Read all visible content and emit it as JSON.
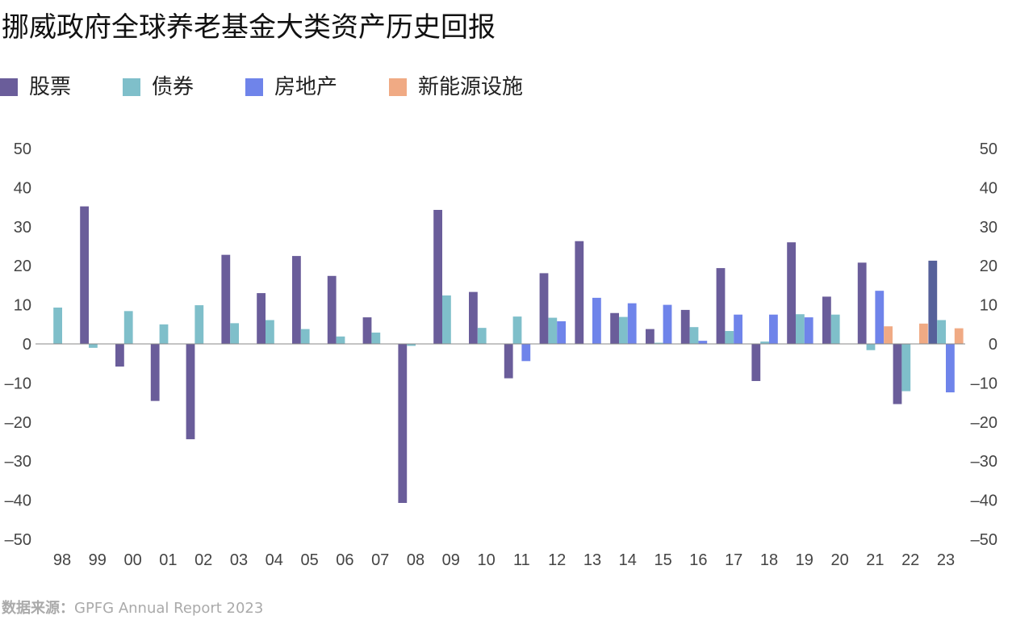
{
  "title": "挪威政府全球养老基金大类资产历史回报",
  "source": {
    "label": "数据来源：",
    "text": "GPFG Annual Report 2023"
  },
  "chart_data": {
    "type": "bar",
    "title": "挪威政府全球养老基金大类资产历史回报",
    "xlabel": "",
    "ylabel": "",
    "ylim": [
      -50,
      50
    ],
    "yticks": [
      50,
      40,
      30,
      20,
      10,
      0,
      -10,
      -20,
      -30,
      -40,
      -50
    ],
    "ytick_labels": [
      "50",
      "40",
      "30",
      "20",
      "10",
      "0",
      "–10",
      "–20",
      "–30",
      "–40",
      "–50"
    ],
    "grid": false,
    "dual_y_axis": true,
    "legend_position": "top-left",
    "categories": [
      "98",
      "99",
      "00",
      "01",
      "02",
      "03",
      "04",
      "05",
      "06",
      "07",
      "08",
      "09",
      "10",
      "11",
      "12",
      "13",
      "14",
      "15",
      "16",
      "17",
      "18",
      "19",
      "20",
      "21",
      "22",
      "23"
    ],
    "series": [
      {
        "name": "股票",
        "color": "#6a5d9a",
        "values": [
          null,
          35.2,
          -5.8,
          -14.6,
          -24.4,
          22.8,
          13.0,
          22.5,
          17.4,
          6.8,
          -40.7,
          34.3,
          13.3,
          -8.8,
          18.1,
          26.3,
          7.9,
          3.8,
          8.7,
          19.4,
          -9.5,
          26.0,
          12.1,
          20.8,
          -15.4,
          21.3
        ],
        "highlight_index": 25,
        "highlight_color": "#56619a"
      },
      {
        "name": "债券",
        "color": "#7fbfca",
        "values": [
          9.3,
          -1.0,
          8.4,
          5.0,
          9.9,
          5.3,
          6.1,
          3.8,
          1.9,
          2.9,
          -0.5,
          12.4,
          4.1,
          7.0,
          6.7,
          null,
          6.9,
          0.3,
          4.3,
          3.3,
          0.6,
          7.6,
          7.5,
          -1.6,
          -12.1,
          6.1
        ]
      },
      {
        "name": "房地产",
        "color": "#6f84ea",
        "values": [
          null,
          null,
          null,
          null,
          null,
          null,
          null,
          null,
          null,
          null,
          null,
          null,
          null,
          -4.4,
          5.8,
          11.8,
          10.4,
          10.0,
          0.8,
          7.5,
          7.5,
          6.8,
          null,
          13.6,
          null,
          -12.4
        ]
      },
      {
        "name": "新能源设施",
        "color": "#f0aa84",
        "values": [
          null,
          null,
          null,
          null,
          null,
          null,
          null,
          null,
          null,
          null,
          null,
          null,
          null,
          null,
          null,
          null,
          null,
          null,
          null,
          null,
          null,
          null,
          null,
          4.5,
          5.2,
          4.0
        ]
      }
    ]
  }
}
